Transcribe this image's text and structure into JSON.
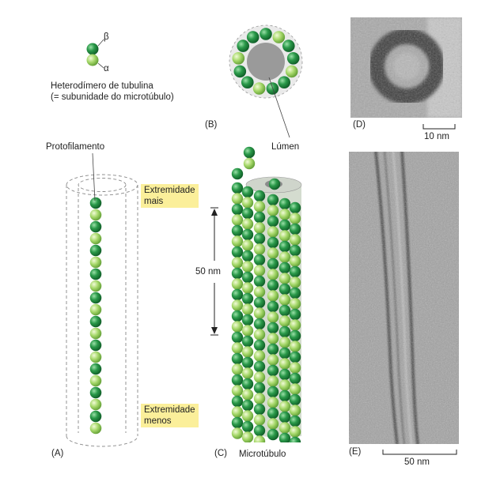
{
  "labels": {
    "beta": "β",
    "alpha": "α",
    "heterodimer_line1": "Heterodímero de tubulina",
    "heterodimer_line2": "(= subunidade do microtúbulo)",
    "protofilament": "Protofilamento",
    "lumen": "Lúmen",
    "plus_end_line1": "Extremidade",
    "plus_end_line2": "mais",
    "minus_end_line1": "Extremidade",
    "minus_end_line2": "menos",
    "length_scale": "50 nm",
    "microtubule": "Microtúbulo",
    "scale_d": "10 nm",
    "scale_e": "50 nm"
  },
  "panels": {
    "a": "(A)",
    "b": "(B)",
    "c": "(C)",
    "d": "(D)",
    "e": "(E)"
  },
  "colors": {
    "beta_tubulin": "#1e8a3e",
    "alpha_tubulin": "#a6d86a",
    "lumen": "#9a9a9a",
    "highlight": "#fbef9a",
    "em_background": "#9e9e9e"
  },
  "counts": {
    "protofilaments_in_cross_section": 13,
    "dimers_per_protofilament": 10
  }
}
